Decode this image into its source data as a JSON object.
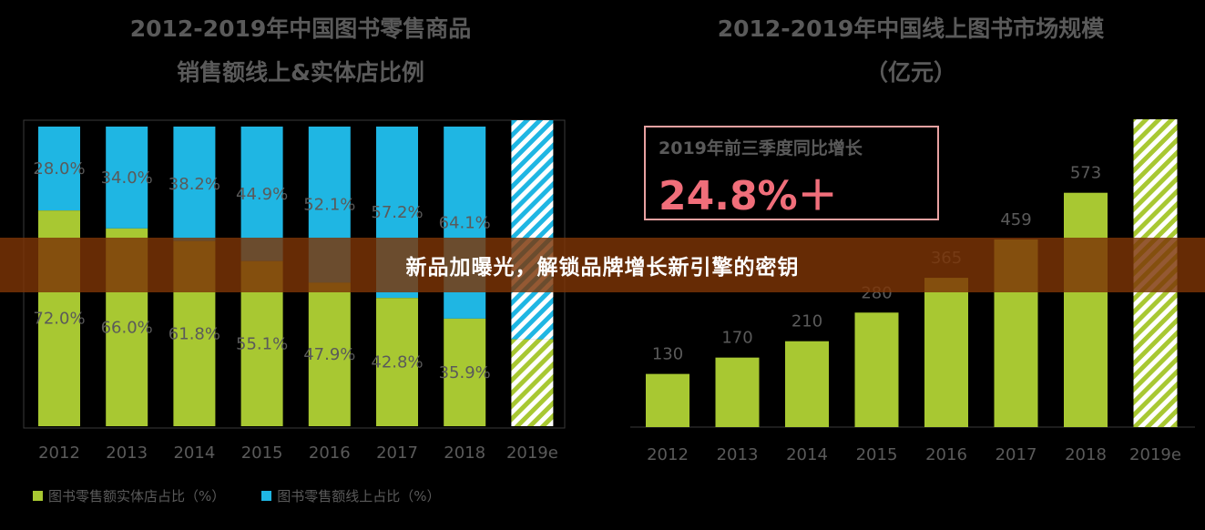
{
  "charts_meta": {
    "left_title_line1": "2012-2019年中国图书零售商品",
    "left_title_line2": "销售额线上&实体店比例",
    "right_title_line1": "2012-2019年中国线上图书市场规模",
    "right_title_line2": "（亿元）"
  },
  "banner_text": "新品加曝光，解锁品牌增长新引擎的密钥",
  "callout": {
    "label": "2019年前三季度同比增长",
    "value": "24.8%＋"
  },
  "legend": {
    "offline": "图书零售额实体店占比（%）",
    "online": "图书零售额线上占比（%）"
  },
  "colors": {
    "green": "#a8c832",
    "blue": "#1fb6e3",
    "text": "#5a5a5a",
    "banner": "#7d3406",
    "callout_border": "#e8a1a1",
    "callout_value": "#f06e7a"
  },
  "chart_data": [
    {
      "type": "bar",
      "stacked": true,
      "percent": true,
      "categories": [
        "2012",
        "2013",
        "2014",
        "2015",
        "2016",
        "2017",
        "2018",
        "2019e"
      ],
      "series": [
        {
          "name": "图书零售额实体店占比（%）",
          "values": [
            72.0,
            66.0,
            61.8,
            55.1,
            47.9,
            42.8,
            35.9,
            null
          ],
          "labels": [
            "72.0%",
            "66.0%",
            "61.8%",
            "55.1%",
            "47.9%",
            "42.8%",
            "35.9%",
            ""
          ]
        },
        {
          "name": "图书零售额线上占比（%）",
          "values": [
            28.0,
            34.0,
            38.2,
            44.9,
            52.1,
            57.2,
            64.1,
            null
          ],
          "labels": [
            "28.0%",
            "34.0%",
            "38.2%",
            "44.9%",
            "52.1%",
            "57.2%",
            "64.1%",
            ""
          ]
        }
      ],
      "estimate_category": "2019e",
      "ylim": [
        0,
        100
      ],
      "legend_position": "bottom-left"
    },
    {
      "type": "bar",
      "categories": [
        "2012",
        "2013",
        "2014",
        "2015",
        "2016",
        "2017",
        "2018",
        "2019e"
      ],
      "values": [
        130,
        170,
        210,
        280,
        365,
        459,
        573,
        null
      ],
      "labels": [
        "130",
        "170",
        "210",
        "280",
        "365",
        "459",
        "573",
        ""
      ],
      "estimate_category": "2019e",
      "ylim": [
        0,
        700
      ]
    }
  ]
}
